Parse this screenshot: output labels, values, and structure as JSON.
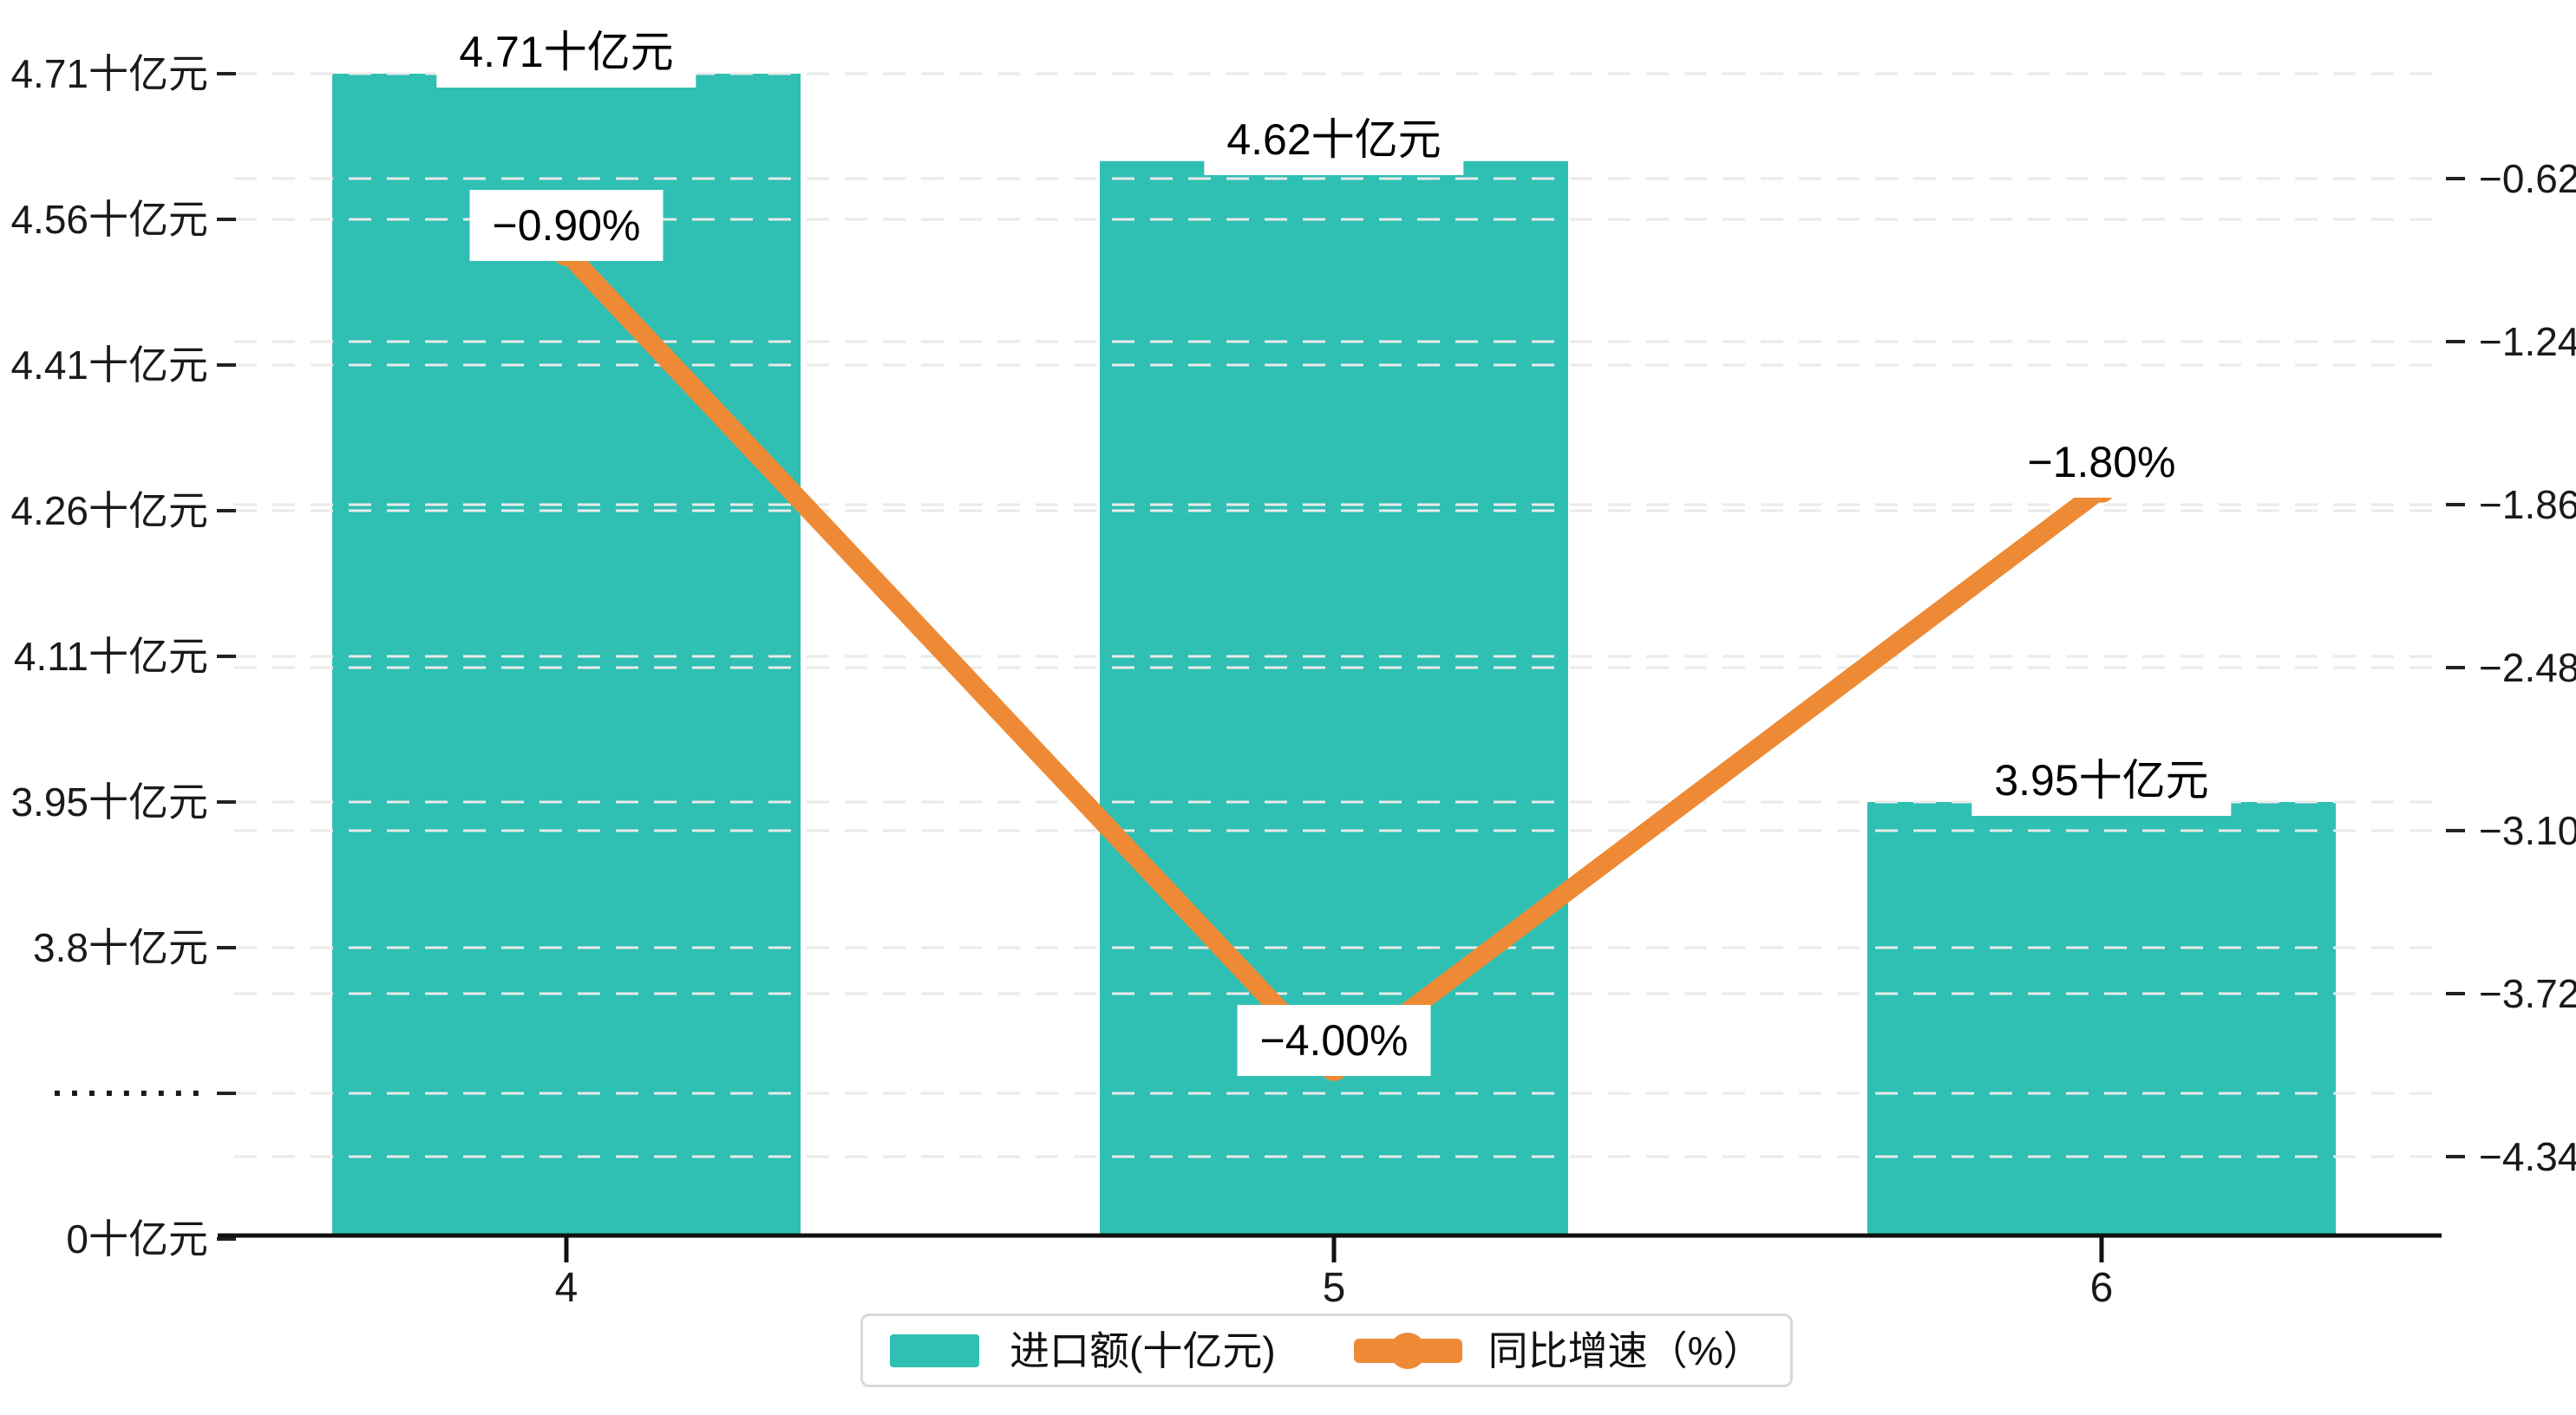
{
  "chart_data": {
    "type": "bar",
    "subtype": "bar-line-dual-axis",
    "categories": [
      "4",
      "5",
      "6"
    ],
    "series": [
      {
        "name": "进口额(十亿元)",
        "type": "bar",
        "yaxis": "left",
        "values": [
          4.71,
          4.62,
          3.95
        ],
        "labels": [
          "4.71十亿元",
          "4.62十亿元",
          "3.95十亿元"
        ]
      },
      {
        "name": "同比增速（%）",
        "type": "line",
        "yaxis": "right",
        "values": [
          -0.9,
          -4.0,
          -1.8
        ],
        "labels": [
          "−0.90%",
          "−4.00%",
          "−1.80%"
        ]
      }
    ],
    "title": "",
    "xlabel": "",
    "ylabel_left": "十亿元",
    "ylabel_right": "%",
    "left_axis": {
      "tick_labels": [
        "4.71十亿元",
        "4.56十亿元",
        "4.41十亿元",
        "4.26十亿元",
        "4.11十亿元",
        "3.95十亿元",
        "3.8十亿元",
        "·········",
        "0十亿元"
      ],
      "tick_values": [
        4.71,
        4.56,
        4.41,
        4.26,
        4.11,
        3.95,
        3.8,
        null,
        0
      ],
      "break_symbol": "·········",
      "broken_scale": true
    },
    "right_axis": {
      "tick_labels": [
        "−0.62",
        "−1.24",
        "−1.86",
        "−2.48",
        "−3.10",
        "−3.72",
        "−4.34"
      ],
      "tick_values": [
        -0.62,
        -1.24,
        -1.86,
        -2.48,
        -3.1,
        -3.72,
        -4.34
      ]
    },
    "grid": true,
    "grid_style": "dashed",
    "legend_position": "bottom"
  },
  "legend": {
    "items": [
      {
        "label": "进口额(十亿元)",
        "marker": "bar-swatch"
      },
      {
        "label": "同比增速（%）",
        "marker": "line-with-dot"
      }
    ]
  },
  "colors": {
    "bar": "#2fbfb3",
    "line": "#ee8a35",
    "grid": "#eaeaea",
    "axis": "#111111",
    "tick": "#222222",
    "text": "#1a1a1a",
    "label_bg": "#ffffff",
    "legend_border": "#d9d9d9"
  }
}
